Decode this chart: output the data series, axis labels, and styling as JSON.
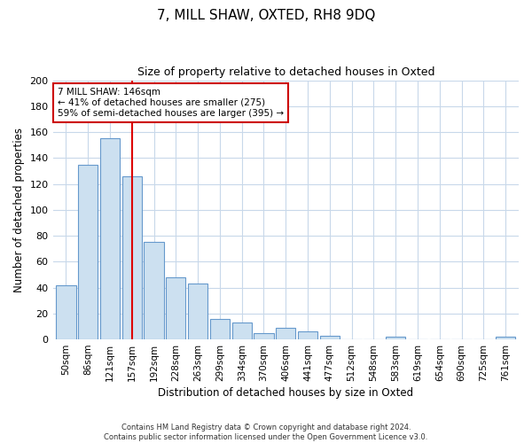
{
  "title": "7, MILL SHAW, OXTED, RH8 9DQ",
  "subtitle": "Size of property relative to detached houses in Oxted",
  "xlabel": "Distribution of detached houses by size in Oxted",
  "ylabel": "Number of detached properties",
  "bar_labels": [
    "50sqm",
    "86sqm",
    "121sqm",
    "157sqm",
    "192sqm",
    "228sqm",
    "263sqm",
    "299sqm",
    "334sqm",
    "370sqm",
    "406sqm",
    "441sqm",
    "477sqm",
    "512sqm",
    "548sqm",
    "583sqm",
    "619sqm",
    "654sqm",
    "690sqm",
    "725sqm",
    "761sqm"
  ],
  "bar_values": [
    42,
    135,
    155,
    126,
    75,
    48,
    43,
    16,
    13,
    5,
    9,
    6,
    3,
    0,
    0,
    2,
    0,
    0,
    0,
    0,
    2
  ],
  "bar_color": "#cce0f0",
  "bar_edge_color": "#6699cc",
  "vline_x": 3.0,
  "vline_color": "#dd0000",
  "annotation_text": "7 MILL SHAW: 146sqm\n← 41% of detached houses are smaller (275)\n59% of semi-detached houses are larger (395) →",
  "annotation_box_color": "#ffffff",
  "annotation_box_edge": "#cc0000",
  "ylim": [
    0,
    200
  ],
  "yticks": [
    0,
    20,
    40,
    60,
    80,
    100,
    120,
    140,
    160,
    180,
    200
  ],
  "footer": "Contains HM Land Registry data © Crown copyright and database right 2024.\nContains public sector information licensed under the Open Government Licence v3.0.",
  "bg_color": "#ffffff",
  "grid_color": "#c8d8ea"
}
